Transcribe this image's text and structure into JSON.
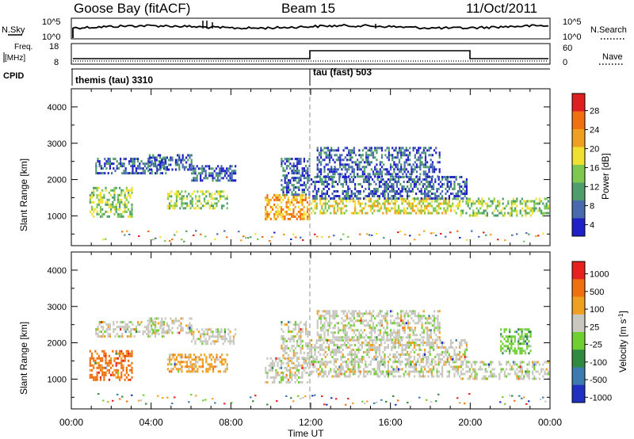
{
  "header": {
    "station": "Goose Bay (fitACF)",
    "beam": "Beam 15",
    "date": "11/Oct/2011"
  },
  "top_panels": {
    "nsky_label": "N.Sky",
    "nsearch_label": "N.Search",
    "nsky_ticks": [
      "10^5",
      "10^0"
    ],
    "nsearch_ticks": [
      "10^5",
      "10^0"
    ],
    "freq_label_1": "Freq.",
    "freq_label_2": "[MHz]",
    "freq_ticks": [
      "18",
      "8"
    ],
    "nave_label": "Nave",
    "nave_ticks": [
      "60",
      "0"
    ],
    "cpid_label": "CPID",
    "cpid_segments": [
      {
        "label": "themis (tau) 3310",
        "start_hour": 0,
        "end_hour": 12
      },
      {
        "label": "tau (fast) 503",
        "start_hour": 12,
        "end_hour": 24
      }
    ]
  },
  "chart_data": [
    {
      "type": "heatmap",
      "title": "Power",
      "ylabel": "Slant Range [km]",
      "xlabel": "Time UT",
      "xlim_hours": [
        0,
        24
      ],
      "ylim_km": [
        180,
        4500
      ],
      "y_ticks": [
        "1000",
        "2000",
        "3000",
        "4000"
      ],
      "x_ticks": [
        "00:00",
        "04:00",
        "08:00",
        "12:00",
        "16:00",
        "20:00",
        "00:00"
      ],
      "colorbar_label": "Power [dB]",
      "colorbar_ticks": [
        "28",
        "24",
        "20",
        "16",
        "12",
        "8",
        "4"
      ],
      "colorbar_colors": [
        "#2020c8",
        "#4a6ab0",
        "#4f9c6c",
        "#7ec850",
        "#f0e030",
        "#f0a020",
        "#f07010",
        "#e02020"
      ],
      "dashed_time_hour": 12,
      "echo_regions": [
        {
          "t0": 0.9,
          "t1": 3.0,
          "r0": 1000,
          "r1": 1800,
          "level": 3
        },
        {
          "t0": 1.2,
          "t1": 4.7,
          "r0": 2200,
          "r1": 2600,
          "level": 1
        },
        {
          "t0": 3.8,
          "t1": 6.0,
          "r0": 2300,
          "r1": 2700,
          "level": 1
        },
        {
          "t0": 4.8,
          "t1": 7.8,
          "r0": 1200,
          "r1": 1700,
          "level": 3
        },
        {
          "t0": 6.0,
          "t1": 8.2,
          "r0": 2000,
          "r1": 2400,
          "level": 1
        },
        {
          "t0": 9.7,
          "t1": 11.9,
          "r0": 900,
          "r1": 1600,
          "level": 5
        },
        {
          "t0": 10.5,
          "t1": 11.9,
          "r0": 1600,
          "r1": 2600,
          "level": 1
        },
        {
          "t0": 12.0,
          "t1": 19.5,
          "r0": 1050,
          "r1": 1500,
          "level": 4
        },
        {
          "t0": 12.0,
          "t1": 19.8,
          "r0": 1500,
          "r1": 2100,
          "level": 1
        },
        {
          "t0": 12.3,
          "t1": 18.5,
          "r0": 2100,
          "r1": 2900,
          "level": 1
        },
        {
          "t0": 19.5,
          "t1": 23.9,
          "r0": 1000,
          "r1": 1500,
          "level": 3
        }
      ]
    },
    {
      "type": "heatmap",
      "title": "Velocity",
      "ylabel": "Slant Range [km]",
      "xlabel": "Time UT",
      "xlim_hours": [
        0,
        24
      ],
      "ylim_km": [
        180,
        4500
      ],
      "y_ticks": [
        "1000",
        "2000",
        "3000",
        "4000"
      ],
      "x_ticks": [
        "00:00",
        "04:00",
        "08:00",
        "12:00",
        "16:00",
        "20:00",
        "00:00"
      ],
      "colorbar_label": "Velocity [m s^-1]",
      "colorbar_ticks": [
        "1000",
        "500",
        "100",
        "25",
        "-25",
        "-100",
        "-500",
        "-1000"
      ],
      "colorbar_colors": [
        "#2030c0",
        "#3c7ab0",
        "#2e8b40",
        "#6fcf30",
        "#c8c8c0",
        "#f0a020",
        "#f07010",
        "#e82020"
      ],
      "dashed_time_hour": 12,
      "echo_regions": [
        {
          "t0": 0.9,
          "t1": 3.0,
          "r0": 1000,
          "r1": 1800,
          "level": 6
        },
        {
          "t0": 1.2,
          "t1": 4.7,
          "r0": 2200,
          "r1": 2600,
          "level": 4
        },
        {
          "t0": 3.8,
          "t1": 6.0,
          "r0": 2300,
          "r1": 2700,
          "level": 4
        },
        {
          "t0": 4.8,
          "t1": 7.8,
          "r0": 1200,
          "r1": 1700,
          "level": 5
        },
        {
          "t0": 6.0,
          "t1": 8.2,
          "r0": 2000,
          "r1": 2400,
          "level": 4
        },
        {
          "t0": 9.7,
          "t1": 11.9,
          "r0": 900,
          "r1": 1600,
          "level": 4
        },
        {
          "t0": 10.5,
          "t1": 11.9,
          "r0": 1600,
          "r1": 2600,
          "level": 4
        },
        {
          "t0": 12.0,
          "t1": 19.5,
          "r0": 1050,
          "r1": 1500,
          "level": 4
        },
        {
          "t0": 12.0,
          "t1": 19.8,
          "r0": 1500,
          "r1": 2100,
          "level": 4
        },
        {
          "t0": 12.3,
          "t1": 18.5,
          "r0": 2100,
          "r1": 2900,
          "level": 4
        },
        {
          "t0": 19.5,
          "t1": 23.9,
          "r0": 1000,
          "r1": 1500,
          "level": 4
        },
        {
          "t0": 21.5,
          "t1": 23.0,
          "r0": 1700,
          "r1": 2400,
          "level": 3
        }
      ]
    }
  ]
}
